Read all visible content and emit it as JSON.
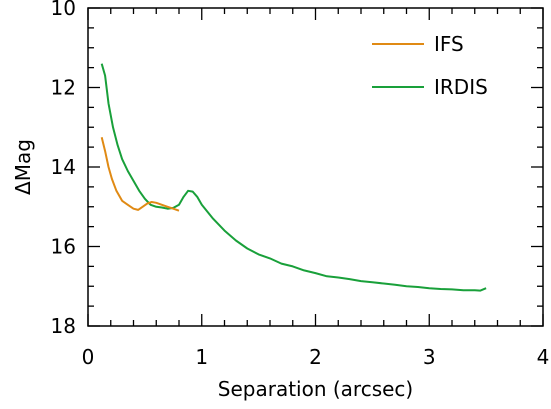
{
  "chart_data": {
    "type": "line",
    "title": "",
    "xlabel": "Separation (arcsec)",
    "ylabel": "ΔMag",
    "xlim": [
      0,
      4
    ],
    "ylim": [
      18,
      10
    ],
    "y_inverted": true,
    "xticks": [
      "0",
      "1",
      "2",
      "3",
      "4"
    ],
    "yticks": [
      "10",
      "12",
      "14",
      "16",
      "18"
    ],
    "xtick_values": [
      0,
      1,
      2,
      3,
      4
    ],
    "ytick_values": [
      10,
      12,
      14,
      16,
      18
    ],
    "grid": false,
    "legend_position": "top-right",
    "series": [
      {
        "name": "IFS",
        "color": "#e08a14",
        "x": [
          0.12,
          0.15,
          0.18,
          0.21,
          0.25,
          0.3,
          0.35,
          0.4,
          0.44,
          0.48,
          0.52,
          0.56,
          0.6,
          0.65,
          0.7,
          0.75,
          0.8
        ],
        "y": [
          13.25,
          13.6,
          14.0,
          14.3,
          14.6,
          14.85,
          14.95,
          15.05,
          15.08,
          15.0,
          14.92,
          14.88,
          14.9,
          14.95,
          15.0,
          15.05,
          15.1
        ]
      },
      {
        "name": "IRDIS",
        "color": "#19a03a",
        "x": [
          0.12,
          0.15,
          0.18,
          0.22,
          0.26,
          0.3,
          0.35,
          0.4,
          0.45,
          0.5,
          0.55,
          0.6,
          0.65,
          0.7,
          0.75,
          0.8,
          0.84,
          0.88,
          0.92,
          0.96,
          1.0,
          1.1,
          1.2,
          1.3,
          1.4,
          1.5,
          1.6,
          1.7,
          1.8,
          1.9,
          2.0,
          2.1,
          2.2,
          2.3,
          2.4,
          2.5,
          2.6,
          2.7,
          2.8,
          2.9,
          3.0,
          3.1,
          3.2,
          3.3,
          3.4,
          3.45,
          3.5
        ],
        "y": [
          11.4,
          11.7,
          12.4,
          13.0,
          13.45,
          13.8,
          14.1,
          14.35,
          14.6,
          14.8,
          14.95,
          15.0,
          15.02,
          15.05,
          15.03,
          14.95,
          14.75,
          14.6,
          14.62,
          14.75,
          14.95,
          15.3,
          15.6,
          15.85,
          16.05,
          16.2,
          16.3,
          16.43,
          16.5,
          16.6,
          16.67,
          16.75,
          16.78,
          16.82,
          16.87,
          16.9,
          16.93,
          16.96,
          17.0,
          17.02,
          17.05,
          17.07,
          17.08,
          17.1,
          17.1,
          17.11,
          17.05
        ]
      }
    ]
  }
}
